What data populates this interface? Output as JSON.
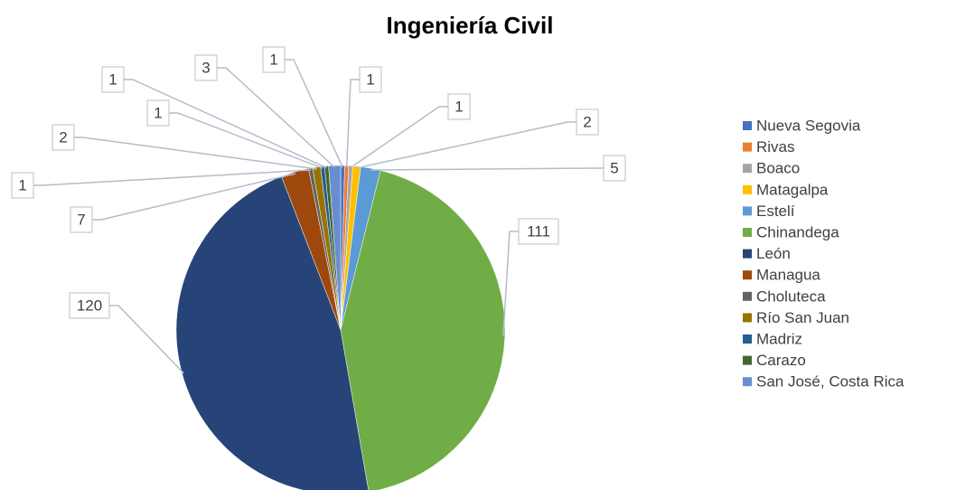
{
  "chart_data": {
    "type": "pie",
    "title": "Ingeniería Civil",
    "categories": [
      "Nueva Segovia",
      "Rivas",
      "Boaco",
      "Matagalpa",
      "Estelí",
      "Chinandega",
      "León",
      "Managua",
      "Choluteca",
      "Río San Juan",
      "Madriz",
      "Carazo",
      "San José, Costa Rica"
    ],
    "values": [
      1,
      1,
      1,
      2,
      5,
      111,
      120,
      7,
      1,
      2,
      1,
      1,
      3
    ],
    "colors": [
      "#4472c4",
      "#ed7d31",
      "#a5a5a5",
      "#ffc000",
      "#5b9bd5",
      "#70ad47",
      "#264478",
      "#9e480e",
      "#636363",
      "#997300",
      "#255e91",
      "#43682b",
      "#698ed0"
    ],
    "legend": "right"
  }
}
